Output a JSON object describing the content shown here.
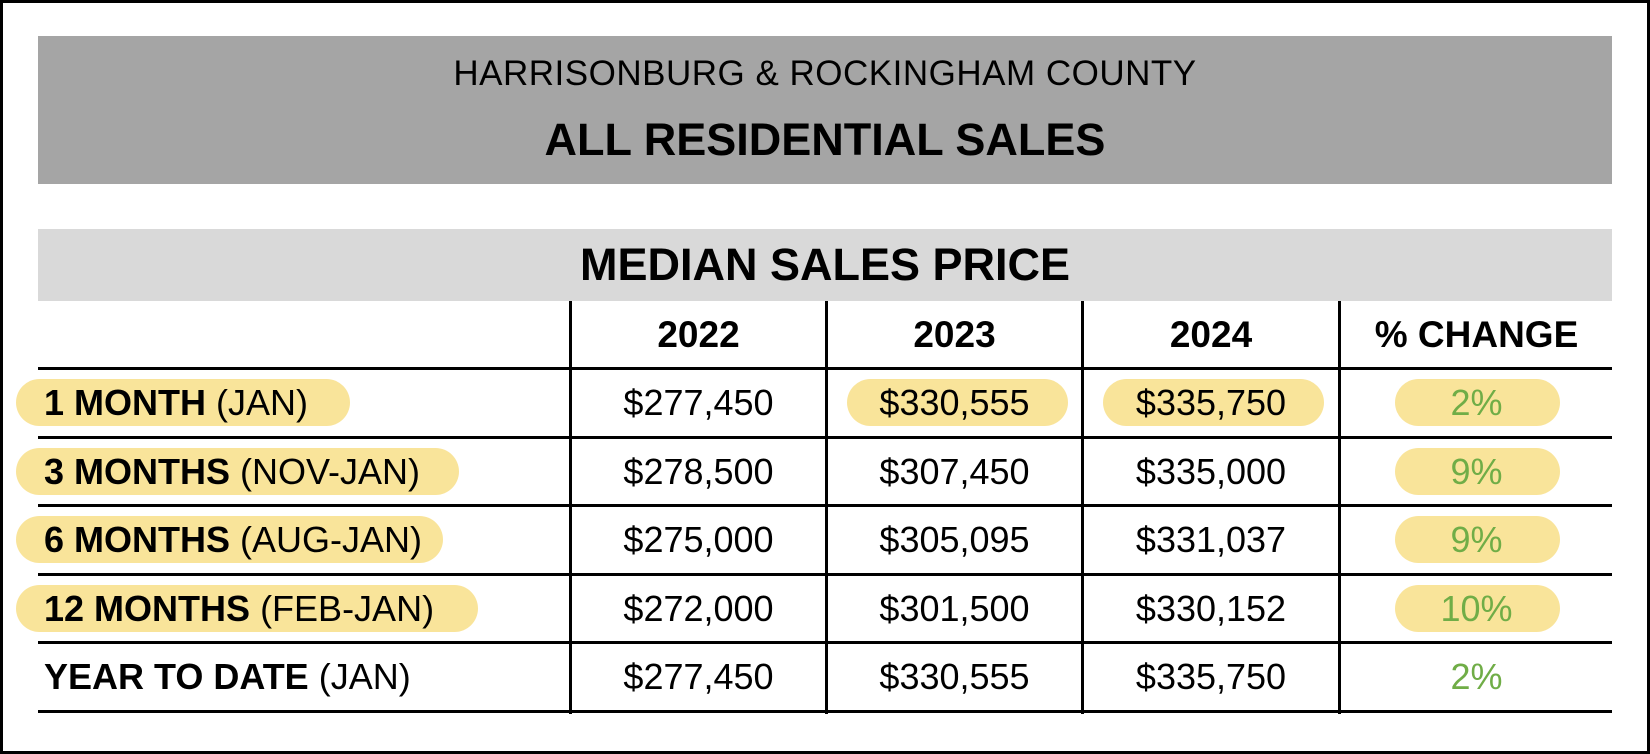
{
  "header": {
    "subtitle": "HARRISONBURG & ROCKINGHAM COUNTY",
    "title": "ALL RESIDENTIAL SALES"
  },
  "section_title": "MEDIAN SALES PRICE",
  "columns": [
    "2022",
    "2023",
    "2024",
    "% CHANGE"
  ],
  "rows": [
    {
      "period": "1 MONTH",
      "range": "(JAN)",
      "v2022": "$277,450",
      "v2023": "$330,555",
      "v2024": "$335,750",
      "change": "2%"
    },
    {
      "period": "3 MONTHS",
      "range": "(NOV-JAN)",
      "v2022": "$278,500",
      "v2023": "$307,450",
      "v2024": "$335,000",
      "change": "9%"
    },
    {
      "period": "6 MONTHS",
      "range": "(AUG-JAN)",
      "v2022": "$275,000",
      "v2023": "$305,095",
      "v2024": "$331,037",
      "change": "9%"
    },
    {
      "period": "12 MONTHS",
      "range": "(FEB-JAN)",
      "v2022": "$272,000",
      "v2023": "$301,500",
      "v2024": "$330,152",
      "change": "10%"
    },
    {
      "period": "YEAR TO DATE",
      "range": "(JAN)",
      "v2022": "$277,450",
      "v2023": "$330,555",
      "v2024": "$335,750",
      "change": "2%"
    }
  ],
  "colors": {
    "header_bg": "#a5a5a5",
    "section_bg": "#d9d9d9",
    "highlight": "#f9e49a",
    "change_text": "#70ad47"
  },
  "chart_data": {
    "type": "table",
    "title": "MEDIAN SALES PRICE",
    "categories": [
      "1 MONTH (JAN)",
      "3 MONTHS (NOV-JAN)",
      "6 MONTHS (AUG-JAN)",
      "12 MONTHS (FEB-JAN)",
      "YEAR TO DATE (JAN)"
    ],
    "series": [
      {
        "name": "2022",
        "values": [
          277450,
          278500,
          275000,
          272000,
          277450
        ]
      },
      {
        "name": "2023",
        "values": [
          330555,
          307450,
          305095,
          301500,
          330555
        ]
      },
      {
        "name": "2024",
        "values": [
          335750,
          335000,
          331037,
          330152,
          335750
        ]
      },
      {
        "name": "% CHANGE",
        "values": [
          2,
          9,
          9,
          10,
          2
        ]
      }
    ],
    "highlighted": {
      "row_labels": [
        0,
        1,
        2,
        3
      ],
      "change_cells": [
        0,
        1,
        2,
        3
      ],
      "value_cells": [
        {
          "row": 0,
          "column": "2023"
        },
        {
          "row": 0,
          "column": "2024"
        }
      ]
    }
  }
}
